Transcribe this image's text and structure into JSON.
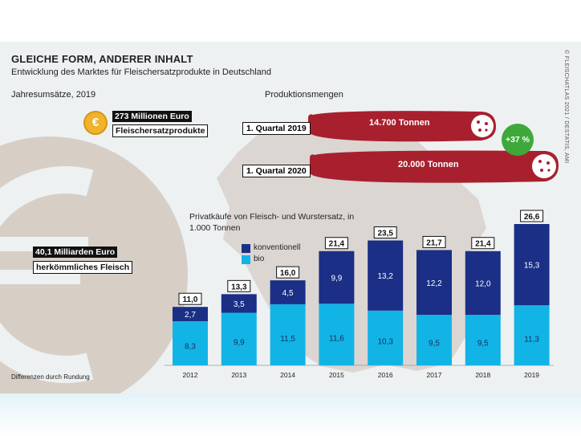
{
  "header": {
    "title": "GLEICHE FORM, ANDERER INHALT",
    "subtitle": "Entwicklung des Marktes für Fleischersatzprodukte in Deutschland",
    "source": "© FLEISCHATLAS 2021 / DESTATIS, AMI"
  },
  "revenue": {
    "heading": "Jahresumsätze, 2019",
    "coin_symbol": "€",
    "substitute_value": "273 Millionen Euro",
    "substitute_label": "Fleischersatzprodukte",
    "meat_value": "40,1 Milliarden Euro",
    "meat_label": "herkömmliches Fleisch"
  },
  "production": {
    "heading": "Produktionsmengen",
    "items": [
      {
        "period": "1. Quartal 2019",
        "amount": "14.700 Tonnen"
      },
      {
        "period": "1. Quartal 2020",
        "amount": "20.000 Tonnen"
      }
    ],
    "growth": "+37 %"
  },
  "purchases": {
    "heading": "Privatkäufe von Fleisch- und Wurstersatz, in 1.000 Tonnen",
    "legend": [
      "konventionell",
      "bio"
    ]
  },
  "footnote": "Differenzen durch Rundung",
  "colors": {
    "conventional": "#1a2f85",
    "organic": "#12b4e6",
    "sausage": "#a8202e",
    "growth": "#3ea83b",
    "coin": "#f1b32b"
  },
  "chart_data": {
    "type": "bar",
    "stacked": true,
    "categories": [
      "2012",
      "2013",
      "2014",
      "2015",
      "2016",
      "2017",
      "2018",
      "2019"
    ],
    "series": [
      {
        "name": "bio",
        "values": [
          8.3,
          9.9,
          11.5,
          11.6,
          10.3,
          9.5,
          9.5,
          11.3
        ],
        "labels": [
          "8,3",
          "9,9",
          "11,5",
          "11,6",
          "10,3",
          "9,5",
          "9,5",
          "11,3"
        ]
      },
      {
        "name": "konventionell",
        "values": [
          2.7,
          3.5,
          4.5,
          9.9,
          13.2,
          12.2,
          12.0,
          15.3
        ],
        "labels": [
          "2,7",
          "3,5",
          "4,5",
          "9,9",
          "13,2",
          "12,2",
          "12,0",
          "15,3"
        ]
      }
    ],
    "totals": [
      11.0,
      13.3,
      16.0,
      21.4,
      23.5,
      21.7,
      21.4,
      26.6
    ],
    "total_labels": [
      "11,0",
      "13,3",
      "16,0",
      "21,4",
      "23,5",
      "21,7",
      "21,4",
      "26,6"
    ],
    "ylim": [
      0,
      26.6
    ],
    "grid": false,
    "legend_position": "top-left"
  }
}
